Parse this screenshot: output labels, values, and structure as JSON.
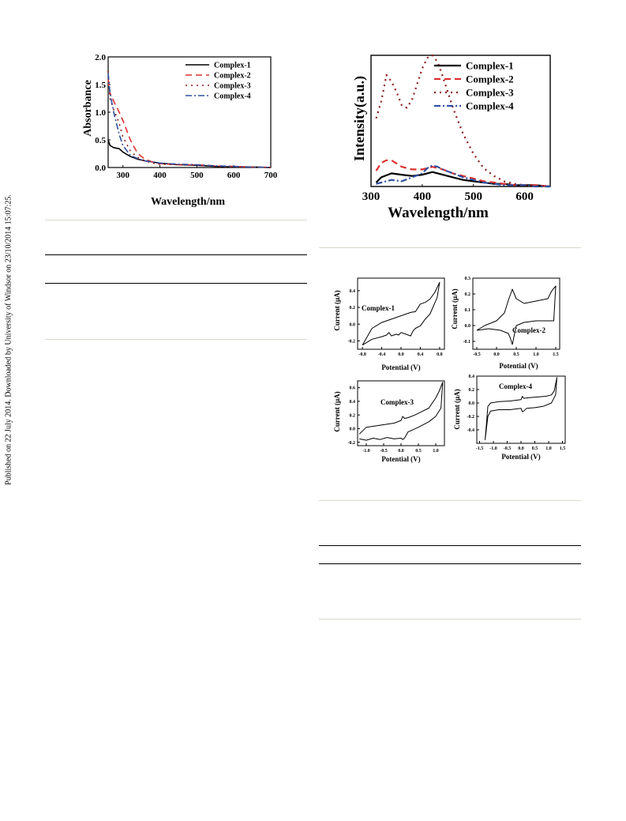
{
  "sidebar": {
    "text": "Published on 22 July 2014. Downloaded by University of Windsor on 23/10/2014 15:07:25."
  },
  "chart_data": [
    {
      "id": "absorbance",
      "type": "line",
      "xlabel": "Wavelength/nm",
      "ylabel": "Absorbance",
      "xlim": [
        260,
        700
      ],
      "ylim": [
        0.0,
        2.0
      ],
      "xticks": [
        300,
        400,
        500,
        600,
        700
      ],
      "yticks": [
        0.0,
        0.5,
        1.0,
        1.5,
        2.0
      ],
      "legend": "top-right",
      "series": [
        {
          "name": "Complex-1",
          "color": "#000000",
          "dash": "solid",
          "x": [
            260,
            265,
            275,
            290,
            300,
            320,
            340,
            360,
            380,
            400,
            450,
            500,
            550,
            600,
            650,
            700
          ],
          "y": [
            0.5,
            0.4,
            0.36,
            0.34,
            0.28,
            0.2,
            0.15,
            0.12,
            0.1,
            0.08,
            0.05,
            0.04,
            0.02,
            0.01,
            0.01,
            0.0
          ]
        },
        {
          "name": "Complex-2",
          "color": "#e03030",
          "dash": "dashed",
          "x": [
            260,
            265,
            275,
            290,
            300,
            320,
            340,
            360,
            380,
            400,
            450,
            500,
            550,
            600,
            650,
            700
          ],
          "y": [
            1.6,
            1.35,
            1.2,
            1.0,
            0.85,
            0.5,
            0.25,
            0.15,
            0.1,
            0.07,
            0.05,
            0.05,
            0.03,
            0.02,
            0.01,
            0.0
          ]
        },
        {
          "name": "Complex-3",
          "color": "#8b1a1a",
          "dash": "dotted",
          "x": [
            260,
            265,
            275,
            290,
            300,
            320,
            340,
            360,
            380,
            400,
            450,
            500,
            550,
            600,
            650,
            700
          ],
          "y": [
            1.75,
            1.25,
            1.05,
            0.8,
            0.55,
            0.3,
            0.18,
            0.12,
            0.08,
            0.06,
            0.05,
            0.04,
            0.02,
            0.01,
            0.01,
            0.0
          ]
        },
        {
          "name": "Complex-4",
          "color": "#3050a0",
          "dash": "dashdot",
          "x": [
            260,
            265,
            275,
            290,
            300,
            320,
            340,
            360,
            380,
            400,
            450,
            500,
            550,
            600,
            650,
            700
          ],
          "y": [
            1.7,
            1.35,
            1.0,
            0.6,
            0.4,
            0.22,
            0.16,
            0.12,
            0.1,
            0.08,
            0.06,
            0.05,
            0.03,
            0.02,
            0.01,
            0.0
          ]
        }
      ]
    },
    {
      "id": "emission",
      "type": "line",
      "xlabel": "Wavelength/nm",
      "ylabel": "Intensity(a.u.)",
      "xlim": [
        300,
        650
      ],
      "ylim": [
        0,
        100
      ],
      "xticks": [
        300,
        400,
        500,
        600
      ],
      "yticks": [],
      "legend": "top-right",
      "series": [
        {
          "name": "Complex-1",
          "color": "#000000",
          "dash": "solid",
          "x": [
            310,
            320,
            340,
            360,
            380,
            400,
            420,
            440,
            460,
            480,
            500,
            520,
            540,
            560,
            580,
            600,
            620,
            650
          ],
          "y": [
            3,
            7,
            10,
            9,
            8,
            9,
            11,
            9,
            7,
            5,
            4,
            3,
            2,
            2,
            1,
            1,
            1,
            0
          ]
        },
        {
          "name": "Complex-2",
          "color": "#e03030",
          "dash": "dashed",
          "x": [
            310,
            320,
            330,
            340,
            360,
            380,
            400,
            420,
            440,
            460,
            480,
            500,
            520,
            540,
            560,
            580,
            600,
            620,
            650
          ],
          "y": [
            12,
            18,
            20,
            20,
            15,
            13,
            13,
            15,
            13,
            10,
            8,
            6,
            4,
            3,
            2,
            1,
            1,
            1,
            0
          ]
        },
        {
          "name": "Complex-3",
          "color": "#8b1a1a",
          "dash": "dotted",
          "x": [
            310,
            320,
            330,
            340,
            350,
            360,
            370,
            380,
            390,
            400,
            410,
            420,
            430,
            440,
            460,
            480,
            500,
            520,
            540,
            560,
            580,
            600,
            620,
            650
          ],
          "y": [
            52,
            65,
            85,
            80,
            72,
            62,
            60,
            66,
            78,
            90,
            98,
            100,
            95,
            84,
            60,
            40,
            25,
            14,
            8,
            4,
            2,
            1,
            1,
            0
          ]
        },
        {
          "name": "Complex-4",
          "color": "#3050a0",
          "dash": "dashdot",
          "x": [
            310,
            320,
            340,
            360,
            380,
            400,
            410,
            420,
            430,
            440,
            460,
            480,
            500,
            520,
            540,
            560,
            580,
            600,
            620,
            650
          ],
          "y": [
            2,
            3,
            5,
            4,
            7,
            10,
            14,
            16,
            15,
            13,
            10,
            7,
            5,
            3,
            2,
            1,
            1,
            1,
            0,
            0
          ]
        }
      ]
    },
    {
      "id": "cv1",
      "type": "line",
      "label": "Complex-1",
      "xlabel": "Potential (V)",
      "ylabel": "Current (μA)",
      "xlim": [
        -0.9,
        0.9
      ],
      "ylim": [
        -0.3,
        0.55
      ],
      "xticks": [
        -0.8,
        -0.4,
        0.0,
        0.4,
        0.8
      ],
      "yticks": [
        -0.2,
        0.0,
        0.2,
        0.4
      ],
      "tick_labels_x": [
        "-0.8",
        "-0.4",
        "0.0",
        "0.4",
        "0.8"
      ],
      "tick_labels_y": [
        "-0.2",
        "0.0",
        "0.2",
        "0.4"
      ],
      "series": [
        {
          "name": "",
          "color": "#000000",
          "x": [
            -0.8,
            -0.6,
            -0.4,
            -0.2,
            0.0,
            0.1,
            0.2,
            0.3,
            0.4,
            0.5,
            0.6,
            0.7,
            0.8,
            0.75,
            0.6,
            0.5,
            0.4,
            0.3,
            0.25,
            0.2,
            0.1,
            0.0,
            -0.05,
            -0.1,
            -0.2,
            -0.25,
            -0.3,
            -0.4,
            -0.6,
            -0.8
          ],
          "y": [
            -0.25,
            -0.05,
            0.02,
            0.06,
            0.1,
            0.12,
            0.14,
            0.15,
            0.24,
            0.26,
            0.3,
            0.38,
            0.5,
            0.32,
            0.12,
            0.06,
            -0.02,
            -0.05,
            -0.08,
            -0.14,
            -0.12,
            -0.1,
            -0.13,
            -0.12,
            -0.14,
            -0.1,
            -0.13,
            -0.15,
            -0.18,
            -0.25
          ]
        }
      ]
    },
    {
      "id": "cv2",
      "type": "line",
      "label": "Complex-2",
      "xlabel": "Potential (V)",
      "ylabel": "Current (μA)",
      "xlim": [
        -0.6,
        1.6
      ],
      "ylim": [
        -0.15,
        0.3
      ],
      "xticks": [
        -0.5,
        0.0,
        0.5,
        1.0,
        1.5
      ],
      "yticks": [
        -0.1,
        0.0,
        0.1,
        0.2,
        0.3
      ],
      "tick_labels_x": [
        "-0.5",
        "0.0",
        "0.5",
        "1.0",
        "1.5"
      ],
      "tick_labels_y": [
        "-0.1",
        "0.0",
        "0.1",
        "0.2",
        "0.3"
      ],
      "series": [
        {
          "name": "",
          "color": "#000000",
          "x": [
            -0.5,
            -0.3,
            0.0,
            0.2,
            0.3,
            0.4,
            0.5,
            0.7,
            0.9,
            1.1,
            1.3,
            1.4,
            1.5,
            1.45,
            1.3,
            1.0,
            0.7,
            0.5,
            0.45,
            0.4,
            0.35,
            0.3,
            0.1,
            -0.2,
            -0.5
          ],
          "y": [
            -0.03,
            0.0,
            0.03,
            0.08,
            0.16,
            0.23,
            0.17,
            0.14,
            0.15,
            0.16,
            0.17,
            0.22,
            0.25,
            0.03,
            0.03,
            0.03,
            0.02,
            0.0,
            -0.06,
            -0.12,
            -0.08,
            -0.05,
            -0.03,
            -0.02,
            -0.03
          ]
        }
      ]
    },
    {
      "id": "cv3",
      "type": "line",
      "label": "Complex-3",
      "xlabel": "Potential (V)",
      "ylabel": "Current (μA)",
      "xlim": [
        -1.25,
        1.25
      ],
      "ylim": [
        -0.25,
        0.7
      ],
      "xticks": [
        -1.0,
        -0.5,
        0.0,
        0.5,
        1.0
      ],
      "yticks": [
        -0.2,
        0.0,
        0.2,
        0.4,
        0.6
      ],
      "tick_labels_x": [
        "-1.0",
        "-0.5",
        "0.0",
        "0.5",
        "1.0"
      ],
      "tick_labels_y": [
        "-0.2",
        "0.0",
        "0.2",
        "0.4",
        "0.6"
      ],
      "series": [
        {
          "name": "",
          "color": "#000000",
          "x": [
            -1.2,
            -1.0,
            -0.6,
            -0.2,
            0.0,
            0.05,
            0.1,
            0.2,
            0.4,
            0.6,
            0.8,
            1.0,
            1.1,
            1.2,
            1.15,
            1.0,
            0.8,
            0.5,
            0.2,
            0.1,
            0.05,
            0.0,
            -0.2,
            -0.4,
            -0.6,
            -0.8,
            -1.0,
            -1.2
          ],
          "y": [
            -0.08,
            0.02,
            0.05,
            0.08,
            0.12,
            0.18,
            0.15,
            0.16,
            0.2,
            0.25,
            0.3,
            0.45,
            0.55,
            0.68,
            0.3,
            0.18,
            0.1,
            0.02,
            -0.05,
            -0.14,
            -0.16,
            -0.14,
            -0.15,
            -0.13,
            -0.16,
            -0.14,
            -0.17,
            -0.15
          ]
        }
      ]
    },
    {
      "id": "cv4",
      "type": "line",
      "label": "Complex-4",
      "xlabel": "Potential (V)",
      "ylabel": "Current (μA)",
      "xlim": [
        -1.6,
        1.6
      ],
      "ylim": [
        -0.6,
        0.4
      ],
      "xticks": [
        -1.5,
        -1.0,
        -0.5,
        0.0,
        0.5,
        1.0,
        1.5
      ],
      "yticks": [
        -0.4,
        -0.2,
        0.0,
        0.2,
        0.4
      ],
      "tick_labels_x": [
        "-1.5",
        "-1.0",
        "-0.5",
        "0.0",
        "0.5",
        "1.0",
        "1.5"
      ],
      "tick_labels_y": [
        "-0.4",
        "-0.2",
        "0.0",
        "0.2",
        "0.4"
      ],
      "series": [
        {
          "name": "",
          "color": "#000000",
          "x": [
            -1.3,
            -1.25,
            -1.2,
            -1.1,
            -0.8,
            -0.4,
            0.0,
            0.05,
            0.1,
            0.3,
            0.6,
            0.9,
            1.1,
            1.2,
            1.25,
            1.3,
            1.25,
            1.1,
            0.8,
            0.5,
            0.2,
            0.1,
            0.05,
            0.0,
            -0.4,
            -0.8,
            -1.1,
            -1.2,
            -1.3
          ],
          "y": [
            -0.55,
            -0.3,
            -0.05,
            0.0,
            0.02,
            0.03,
            0.05,
            0.1,
            0.07,
            0.08,
            0.09,
            0.1,
            0.12,
            0.18,
            0.28,
            0.38,
            0.12,
            0.0,
            -0.05,
            -0.07,
            -0.08,
            -0.12,
            -0.13,
            -0.08,
            -0.1,
            -0.1,
            -0.12,
            -0.2,
            -0.55
          ]
        }
      ]
    }
  ]
}
